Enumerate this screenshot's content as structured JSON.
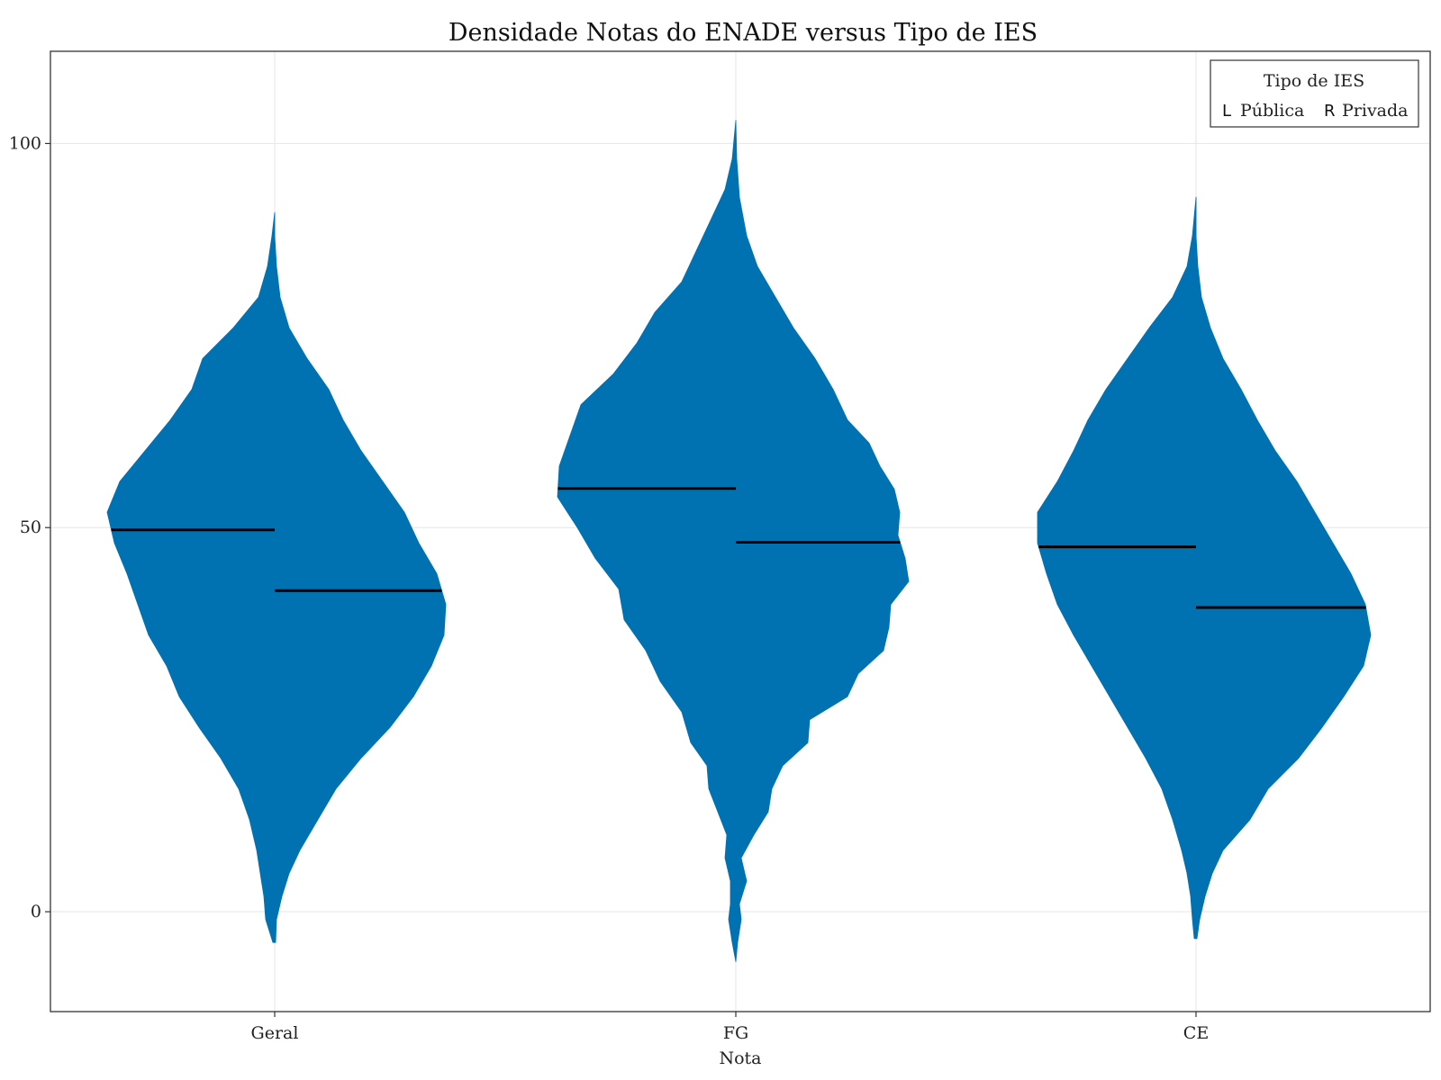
{
  "chart_data": {
    "type": "violin",
    "title": "Densidade Notas do ENADE versus Tipo de IES",
    "xlabel": "Nota",
    "ylabel": "",
    "categories": [
      "Geral",
      "FG",
      "CE"
    ],
    "ylim": [
      -13,
      112
    ],
    "yticks": [
      0,
      50,
      100
    ],
    "grid": true,
    "color": "#0072B2",
    "median_color": "#000000",
    "legend": {
      "title": "Tipo de IES",
      "position": "top-right",
      "entries": [
        {
          "marker": "L",
          "label": "Pública"
        },
        {
          "marker": "R",
          "label": "Privada"
        }
      ]
    },
    "series": [
      {
        "name": "Pública",
        "side": "left",
        "medians": [
          49.7,
          55.1,
          47.5
        ],
        "densities": [
          {
            "category": "Geral",
            "y": [
              -4,
              -1,
              2,
              5,
              8,
              12,
              16,
              20,
              24,
              28,
              32,
              36,
              40,
              44,
              48,
              52,
              56,
              60,
              64,
              68,
              72,
              76,
              80,
              84,
              88,
              91
            ],
            "width": [
              0.01,
              0.05,
              0.06,
              0.08,
              0.1,
              0.14,
              0.2,
              0.3,
              0.42,
              0.53,
              0.6,
              0.7,
              0.76,
              0.82,
              0.89,
              0.93,
              0.86,
              0.72,
              0.58,
              0.46,
              0.4,
              0.23,
              0.09,
              0.04,
              0.015,
              0.0
            ]
          },
          {
            "category": "FG",
            "y": [
              -6.5,
              -4,
              -1,
              1,
              4,
              7,
              10,
              13,
              16,
              19,
              22,
              26,
              30,
              34,
              38,
              42,
              46,
              50,
              54,
              58,
              62,
              66,
              70,
              74,
              78,
              82,
              86,
              90,
              94,
              98,
              103
            ],
            "width": [
              0.0,
              0.02,
              0.04,
              0.03,
              0.03,
              0.06,
              0.05,
              0.1,
              0.15,
              0.16,
              0.25,
              0.3,
              0.42,
              0.5,
              0.62,
              0.65,
              0.78,
              0.88,
              0.99,
              0.98,
              0.92,
              0.86,
              0.68,
              0.55,
              0.45,
              0.3,
              0.22,
              0.14,
              0.06,
              0.02,
              0.0
            ]
          },
          {
            "category": "CE",
            "y": [
              -3.5,
              -1,
              2,
              5,
              8,
              12,
              16,
              20,
              24,
              28,
              32,
              36,
              40,
              44,
              48,
              52,
              56,
              60,
              64,
              68,
              72,
              76,
              80,
              84,
              88,
              93
            ],
            "width": [
              0.01,
              0.02,
              0.03,
              0.05,
              0.08,
              0.13,
              0.19,
              0.28,
              0.38,
              0.48,
              0.58,
              0.68,
              0.77,
              0.83,
              0.88,
              0.88,
              0.77,
              0.68,
              0.6,
              0.5,
              0.38,
              0.26,
              0.13,
              0.05,
              0.02,
              0.0
            ]
          }
        ]
      },
      {
        "name": "Privada",
        "side": "right",
        "medians": [
          41.8,
          48.1,
          39.6
        ],
        "densities": [
          {
            "category": "Geral",
            "y": [
              -4,
              -1,
              2,
              5,
              8,
              12,
              16,
              20,
              24,
              28,
              32,
              36,
              40,
              44,
              48,
              52,
              56,
              60,
              64,
              68,
              72,
              76,
              80,
              84,
              88,
              91
            ],
            "width": [
              0.005,
              0.01,
              0.04,
              0.08,
              0.14,
              0.24,
              0.34,
              0.48,
              0.64,
              0.77,
              0.87,
              0.94,
              0.95,
              0.9,
              0.8,
              0.72,
              0.6,
              0.48,
              0.38,
              0.3,
              0.18,
              0.08,
              0.03,
              0.01,
              0.0,
              0.0
            ]
          },
          {
            "category": "FG",
            "y": [
              -6.5,
              -4,
              -1,
              1,
              4,
              7,
              10,
              13,
              16,
              19,
              22,
              25,
              28,
              31,
              34,
              37,
              40,
              43,
              46,
              49,
              52,
              55,
              58,
              61,
              64,
              68,
              72,
              76,
              80,
              84,
              88,
              93,
              98,
              103
            ],
            "width": [
              0.0,
              0.01,
              0.03,
              0.02,
              0.06,
              0.03,
              0.1,
              0.18,
              0.2,
              0.26,
              0.4,
              0.41,
              0.62,
              0.68,
              0.82,
              0.85,
              0.86,
              0.96,
              0.94,
              0.9,
              0.91,
              0.88,
              0.8,
              0.74,
              0.62,
              0.54,
              0.44,
              0.32,
              0.22,
              0.12,
              0.06,
              0.02,
              0.005,
              0.0
            ]
          },
          {
            "category": "CE",
            "y": [
              -3.5,
              -1,
              2,
              5,
              8,
              12,
              16,
              20,
              24,
              28,
              32,
              36,
              40,
              44,
              48,
              52,
              56,
              60,
              64,
              68,
              72,
              76,
              80,
              84,
              88,
              93
            ],
            "width": [
              0.005,
              0.02,
              0.05,
              0.09,
              0.15,
              0.3,
              0.4,
              0.57,
              0.7,
              0.82,
              0.93,
              0.97,
              0.94,
              0.86,
              0.76,
              0.66,
              0.56,
              0.44,
              0.34,
              0.25,
              0.15,
              0.08,
              0.03,
              0.01,
              0.0,
              0.0
            ]
          }
        ]
      }
    ]
  }
}
